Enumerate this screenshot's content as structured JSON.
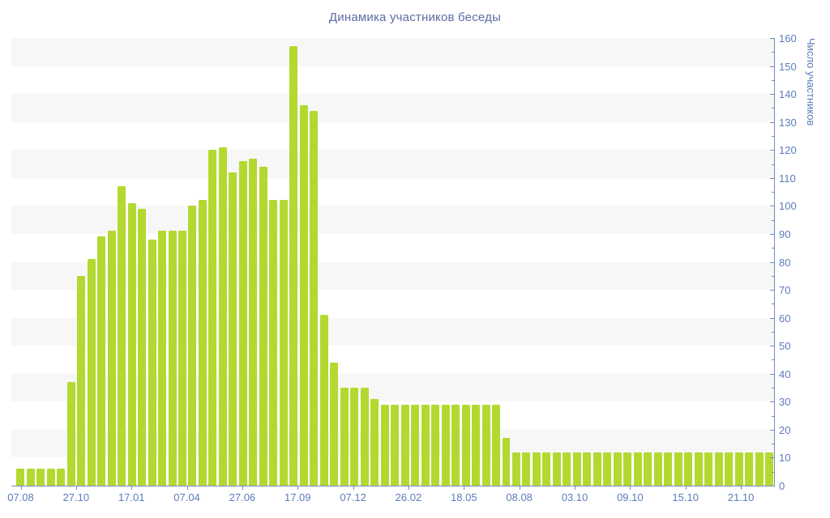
{
  "title": "Динамика участников беседы",
  "y_axis": {
    "label": "Число участников",
    "min": 0,
    "max": 160,
    "major_step": 10,
    "minor_step": 5
  },
  "x_axis": {
    "tick_labels": [
      "07.08",
      "27.10",
      "17.01",
      "07.04",
      "27.06",
      "17.09",
      "07.12",
      "26.02",
      "18.05",
      "08.08",
      "03.10",
      "09.10",
      "15.10",
      "21.10"
    ]
  },
  "chart_data": {
    "type": "bar",
    "title": "Динамика участников беседы",
    "xlabel": "",
    "ylabel": "Число участников",
    "ylim": [
      0,
      160
    ],
    "grid": "alternating horizontal bands every 10 units",
    "legend": "none",
    "x_tick_labels": [
      "07.08",
      "27.10",
      "17.01",
      "07.04",
      "27.06",
      "17.09",
      "07.12",
      "26.02",
      "18.05",
      "08.08",
      "03.10",
      "09.10",
      "15.10",
      "21.10"
    ],
    "values": [
      6,
      6,
      6,
      6,
      6,
      37,
      75,
      81,
      89,
      91,
      107,
      101,
      99,
      88,
      91,
      91,
      91,
      100,
      102,
      120,
      121,
      112,
      116,
      117,
      114,
      102,
      102,
      157,
      136,
      134,
      61,
      44,
      35,
      35,
      35,
      31,
      29,
      29,
      29,
      29,
      29,
      29,
      29,
      29,
      29,
      29,
      29,
      29,
      17,
      12,
      12,
      12,
      12,
      12,
      12,
      12,
      12,
      12,
      12,
      12,
      12,
      12,
      12,
      12,
      12,
      12,
      12,
      12,
      12,
      12,
      12,
      12,
      12,
      12,
      12
    ],
    "colors": {
      "bar": "#b3d931",
      "band_gray": "#f7f7f8",
      "band_white": "#ffffff",
      "axis_line": "#6e8cc0",
      "tick_label": "#5b7cba",
      "title": "#5d6da5"
    }
  }
}
